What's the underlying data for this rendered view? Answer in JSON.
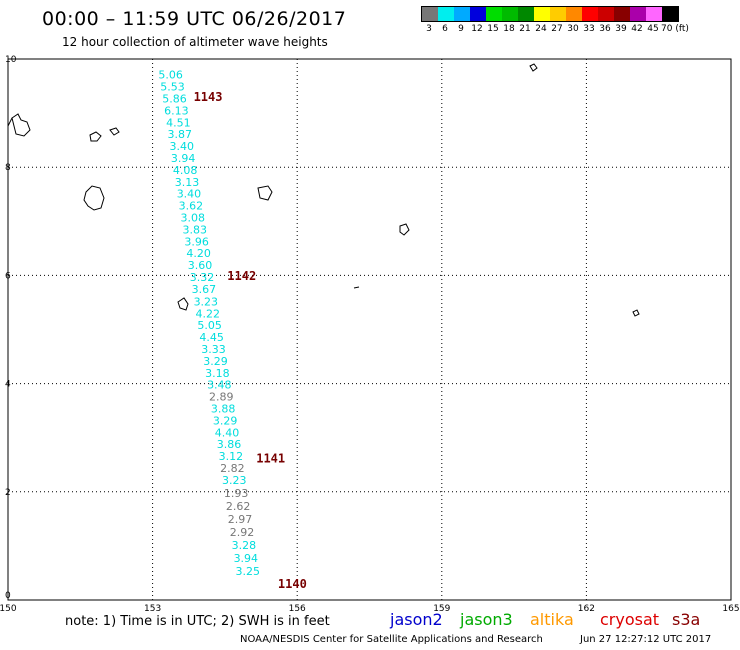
{
  "header": {
    "title": "00:00 – 11:59 UTC 06/26/2017",
    "subtitle": "12 hour collection of altimeter wave heights"
  },
  "colorbar": {
    "cells": [
      {
        "label": "3",
        "color": "#777777"
      },
      {
        "label": "6",
        "color": "#00eeee"
      },
      {
        "label": "9",
        "color": "#00aaff"
      },
      {
        "label": "12",
        "color": "#0000dd"
      },
      {
        "label": "15",
        "color": "#00dd00"
      },
      {
        "label": "18",
        "color": "#00bb00"
      },
      {
        "label": "21",
        "color": "#008800"
      },
      {
        "label": "24",
        "color": "#ffff00"
      },
      {
        "label": "27",
        "color": "#ffcc00"
      },
      {
        "label": "30",
        "color": "#ff8800"
      },
      {
        "label": "33",
        "color": "#ff0000"
      },
      {
        "label": "36",
        "color": "#cc0000"
      },
      {
        "label": "39",
        "color": "#880000"
      },
      {
        "label": "42",
        "color": "#aa00aa"
      },
      {
        "label": "45",
        "color": "#ff66ff"
      },
      {
        "label": "70 (ft)",
        "color": "#000000"
      }
    ]
  },
  "map": {
    "x_ticks": [
      "150",
      "153",
      "156",
      "159",
      "162",
      "165"
    ],
    "y_ticks": [
      "10",
      "8",
      "6",
      "4",
      "2",
      "0"
    ],
    "x_range": [
      150,
      165
    ],
    "y_range": [
      0,
      10
    ],
    "observations": [
      {
        "v": "5.06",
        "lon": 153.12,
        "lat": 9.71,
        "color": "#00dddd"
      },
      {
        "v": "5.53",
        "lon": 153.16,
        "lat": 9.49,
        "color": "#00dddd"
      },
      {
        "v": "5.86",
        "lon": 153.2,
        "lat": 9.27,
        "color": "#00dddd"
      },
      {
        "v": "6.13",
        "lon": 153.24,
        "lat": 9.05,
        "color": "#00dddd"
      },
      {
        "v": "4.51",
        "lon": 153.28,
        "lat": 8.83,
        "color": "#00dddd"
      },
      {
        "v": "3.87",
        "lon": 153.31,
        "lat": 8.61,
        "color": "#00dddd"
      },
      {
        "v": "3.40",
        "lon": 153.35,
        "lat": 8.39,
        "color": "#00dddd"
      },
      {
        "v": "3.94",
        "lon": 153.38,
        "lat": 8.17,
        "color": "#00dddd"
      },
      {
        "v": "4.08",
        "lon": 153.42,
        "lat": 7.95,
        "color": "#00dddd"
      },
      {
        "v": "3.13",
        "lon": 153.46,
        "lat": 7.73,
        "color": "#00dddd"
      },
      {
        "v": "3.40",
        "lon": 153.5,
        "lat": 7.51,
        "color": "#00dddd"
      },
      {
        "v": "3.62",
        "lon": 153.54,
        "lat": 7.29,
        "color": "#00dddd"
      },
      {
        "v": "3.08",
        "lon": 153.58,
        "lat": 7.07,
        "color": "#00dddd"
      },
      {
        "v": "3.83",
        "lon": 153.62,
        "lat": 6.85,
        "color": "#00dddd"
      },
      {
        "v": "3.96",
        "lon": 153.66,
        "lat": 6.63,
        "color": "#00dddd"
      },
      {
        "v": "4.20",
        "lon": 153.7,
        "lat": 6.41,
        "color": "#00dddd"
      },
      {
        "v": "3.60",
        "lon": 153.73,
        "lat": 6.19,
        "color": "#00dddd"
      },
      {
        "v": "3.32",
        "lon": 153.77,
        "lat": 5.97,
        "color": "#00dddd"
      },
      {
        "v": "3.67",
        "lon": 153.81,
        "lat": 5.75,
        "color": "#00dddd"
      },
      {
        "v": "3.23",
        "lon": 153.85,
        "lat": 5.52,
        "color": "#00dddd"
      },
      {
        "v": "4.22",
        "lon": 153.89,
        "lat": 5.3,
        "color": "#00dddd"
      },
      {
        "v": "5.05",
        "lon": 153.93,
        "lat": 5.08,
        "color": "#00dddd"
      },
      {
        "v": "4.45",
        "lon": 153.97,
        "lat": 4.86,
        "color": "#00dddd"
      },
      {
        "v": "3.33",
        "lon": 154.01,
        "lat": 4.64,
        "color": "#00dddd"
      },
      {
        "v": "3.29",
        "lon": 154.05,
        "lat": 4.42,
        "color": "#00dddd"
      },
      {
        "v": "3.18",
        "lon": 154.09,
        "lat": 4.2,
        "color": "#00dddd"
      },
      {
        "v": "3.48",
        "lon": 154.13,
        "lat": 3.98,
        "color": "#00dddd"
      },
      {
        "v": "2.89",
        "lon": 154.17,
        "lat": 3.76,
        "color": "#777777"
      },
      {
        "v": "3.88",
        "lon": 154.21,
        "lat": 3.54,
        "color": "#00dddd"
      },
      {
        "v": "3.29",
        "lon": 154.25,
        "lat": 3.32,
        "color": "#00dddd"
      },
      {
        "v": "4.40",
        "lon": 154.29,
        "lat": 3.1,
        "color": "#00dddd"
      },
      {
        "v": "3.86",
        "lon": 154.33,
        "lat": 2.88,
        "color": "#00dddd"
      },
      {
        "v": "3.12",
        "lon": 154.37,
        "lat": 2.66,
        "color": "#00dddd"
      },
      {
        "v": "2.82",
        "lon": 154.4,
        "lat": 2.44,
        "color": "#777777"
      },
      {
        "v": "3.23",
        "lon": 154.44,
        "lat": 2.22,
        "color": "#00dddd"
      },
      {
        "v": "1.93",
        "lon": 154.48,
        "lat": 1.98,
        "color": "#777777"
      },
      {
        "v": "2.62",
        "lon": 154.52,
        "lat": 1.74,
        "color": "#777777"
      },
      {
        "v": "2.97",
        "lon": 154.56,
        "lat": 1.5,
        "color": "#777777"
      },
      {
        "v": "2.92",
        "lon": 154.6,
        "lat": 1.26,
        "color": "#777777"
      },
      {
        "v": "3.28",
        "lon": 154.64,
        "lat": 1.02,
        "color": "#00dddd"
      },
      {
        "v": "3.94",
        "lon": 154.68,
        "lat": 0.78,
        "color": "#00dddd"
      },
      {
        "v": "3.25",
        "lon": 154.72,
        "lat": 0.54,
        "color": "#00dddd"
      }
    ],
    "pass_labels": [
      {
        "text": "1143",
        "lon": 153.85,
        "lat": 9.3,
        "color": "#770000"
      },
      {
        "text": "1142",
        "lon": 154.55,
        "lat": 5.99,
        "color": "#770000"
      },
      {
        "text": "1141",
        "lon": 155.15,
        "lat": 2.62,
        "color": "#770000"
      },
      {
        "text": "1140",
        "lon": 155.6,
        "lat": 0.3,
        "color": "#770000"
      }
    ]
  },
  "legend": {
    "note": "note: 1) Time is in UTC; 2) SWH is in feet",
    "missions": [
      {
        "name": "jason2",
        "color": "#0000cc"
      },
      {
        "name": "jason3",
        "color": "#00aa00"
      },
      {
        "name": "altika",
        "color": "#ff9900"
      },
      {
        "name": "cryosat",
        "color": "#dd0000"
      },
      {
        "name": "s3a",
        "color": "#880000"
      }
    ]
  },
  "footer": {
    "credit": "NOAA/NESDIS Center for Satellite Applications and Research",
    "timestamp": "Jun 27 12:27:12 UTC 2017"
  }
}
